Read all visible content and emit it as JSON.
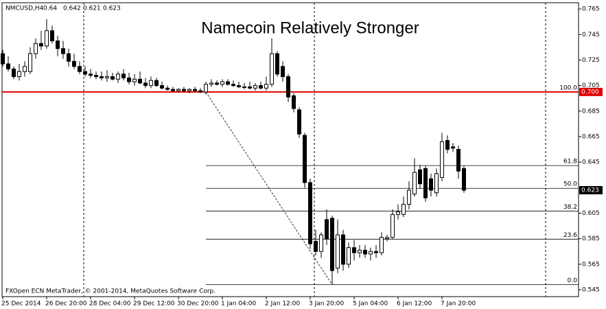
{
  "chart_data": {
    "type": "candlestick",
    "symbol": "NMCUSD,H4",
    "title": "Namecoin Relatively Stronger",
    "footer": "FXOpen ECN MetaTrader, © 2001-2014, MetaQuotes Software Corp.",
    "categories": [
      "25 Dec 2014",
      null,
      null,
      null,
      null,
      null,
      null,
      null,
      "26 Dec 20:00",
      null,
      null,
      null,
      null,
      null,
      null,
      null,
      "28 Dec 04:00",
      null,
      null,
      null,
      null,
      null,
      null,
      null,
      "29 Dec 12:00",
      null,
      null,
      null,
      null,
      null,
      null,
      null,
      "30 Dec 20:00",
      null,
      null,
      null,
      null,
      null,
      null,
      null,
      "1 Jan 04:00",
      null,
      null,
      null,
      null,
      null,
      null,
      null,
      "2 Jan 12:00",
      null,
      null,
      null,
      null,
      null,
      null,
      null,
      "3 Jan 20:00",
      null,
      null,
      null,
      null,
      null,
      null,
      null,
      "5 Jan 04:00",
      null,
      null,
      null,
      null,
      null,
      null,
      null,
      "6 Jan 12:00",
      null,
      null,
      null,
      null,
      null,
      null,
      null,
      "7 Jan 20:00",
      null,
      null,
      null,
      null
    ],
    "open": [
      0.73,
      0.722,
      0.718,
      0.712,
      0.716,
      0.716,
      0.73,
      0.738,
      0.736,
      0.748,
      0.74,
      0.734,
      0.73,
      0.724,
      0.72,
      0.716,
      0.714,
      0.713,
      0.712,
      0.711,
      0.712,
      0.71,
      0.714,
      0.711,
      0.708,
      0.71,
      0.707,
      0.705,
      0.709,
      0.705,
      0.703,
      0.702,
      0.701,
      0.702,
      0.701,
      0.702,
      0.701,
      0.7,
      0.706,
      0.707,
      0.706,
      0.708,
      0.706,
      0.705,
      0.704,
      0.704,
      0.703,
      0.705,
      0.703,
      0.706,
      0.73,
      0.72,
      0.712,
      0.697,
      0.686,
      0.666,
      0.629,
      0.583,
      0.575,
      0.6,
      0.601,
      0.562,
      0.588,
      0.565,
      0.578,
      0.574,
      0.576,
      0.573,
      0.575,
      0.574,
      0.585,
      0.586,
      0.604,
      0.604,
      0.612,
      0.62,
      0.639,
      0.64,
      0.632,
      0.621,
      0.633,
      0.662,
      0.657,
      0.655,
      0.64
    ],
    "high": [
      0.733,
      0.728,
      0.72,
      0.722,
      0.724,
      0.735,
      0.742,
      0.748,
      0.757,
      0.752,
      0.744,
      0.74,
      0.734,
      0.73,
      0.724,
      0.72,
      0.718,
      0.716,
      0.716,
      0.717,
      0.715,
      0.716,
      0.718,
      0.715,
      0.714,
      0.716,
      0.711,
      0.712,
      0.711,
      0.708,
      0.705,
      0.704,
      0.703,
      0.704,
      0.703,
      0.704,
      0.703,
      0.708,
      0.71,
      0.709,
      0.71,
      0.71,
      0.709,
      0.708,
      0.707,
      0.708,
      0.707,
      0.708,
      0.712,
      0.742,
      0.732,
      0.724,
      0.714,
      0.699,
      0.688,
      0.668,
      0.632,
      0.592,
      0.59,
      0.608,
      0.603,
      0.6,
      0.592,
      0.582,
      0.584,
      0.58,
      0.58,
      0.578,
      0.58,
      0.59,
      0.588,
      0.608,
      0.612,
      0.618,
      0.63,
      0.648,
      0.643,
      0.642,
      0.636,
      0.64,
      0.668,
      0.666,
      0.66,
      0.658,
      0.642
    ],
    "low": [
      0.72,
      0.716,
      0.71,
      0.709,
      0.712,
      0.714,
      0.726,
      0.733,
      0.734,
      0.738,
      0.728,
      0.726,
      0.72,
      0.718,
      0.714,
      0.712,
      0.711,
      0.71,
      0.709,
      0.708,
      0.709,
      0.707,
      0.709,
      0.706,
      0.705,
      0.706,
      0.703,
      0.703,
      0.704,
      0.702,
      0.701,
      0.7,
      0.7,
      0.7,
      0.699,
      0.7,
      0.699,
      0.698,
      0.704,
      0.705,
      0.704,
      0.705,
      0.704,
      0.703,
      0.702,
      0.702,
      0.701,
      0.702,
      0.701,
      0.704,
      0.712,
      0.708,
      0.692,
      0.684,
      0.664,
      0.625,
      0.577,
      0.572,
      0.57,
      0.58,
      0.549,
      0.558,
      0.56,
      0.562,
      0.568,
      0.57,
      0.57,
      0.568,
      0.57,
      0.572,
      0.583,
      0.585,
      0.6,
      0.602,
      0.608,
      0.618,
      0.624,
      0.614,
      0.618,
      0.618,
      0.63,
      0.652,
      0.653,
      0.632,
      0.621
    ],
    "close": [
      0.722,
      0.718,
      0.712,
      0.716,
      0.72,
      0.73,
      0.738,
      0.736,
      0.748,
      0.74,
      0.734,
      0.73,
      0.724,
      0.72,
      0.716,
      0.714,
      0.713,
      0.712,
      0.711,
      0.712,
      0.71,
      0.714,
      0.711,
      0.708,
      0.71,
      0.707,
      0.705,
      0.709,
      0.705,
      0.703,
      0.702,
      0.701,
      0.702,
      0.701,
      0.702,
      0.701,
      0.7,
      0.706,
      0.707,
      0.706,
      0.708,
      0.706,
      0.705,
      0.704,
      0.704,
      0.703,
      0.705,
      0.703,
      0.706,
      0.73,
      0.714,
      0.712,
      0.696,
      0.687,
      0.667,
      0.629,
      0.581,
      0.575,
      0.588,
      0.585,
      0.56,
      0.588,
      0.565,
      0.578,
      0.574,
      0.576,
      0.573,
      0.575,
      0.574,
      0.586,
      0.586,
      0.604,
      0.606,
      0.612,
      0.623,
      0.637,
      0.628,
      0.617,
      0.623,
      0.636,
      0.661,
      0.655,
      0.656,
      0.638,
      0.623
    ],
    "up_color": "#ffffff",
    "down_color": "#000000",
    "ylim": [
      0.5396,
      0.7699
    ],
    "yticks": [
      0.545,
      0.565,
      0.585,
      0.605,
      0.645,
      0.665,
      0.685,
      {
        "value": 0.705,
        "label": "0.705"
      },
      0.725,
      0.745,
      0.765
    ],
    "hline": {
      "value": 0.7,
      "label": "0.700",
      "color": "#e00000"
    },
    "fib": {
      "high": 0.7,
      "low": 0.549,
      "levels": [
        {
          "value": 100,
          "label": "100.0"
        },
        61.8,
        {
          "value": 50,
          "label": "50.0"
        },
        38.2,
        23.6,
        {
          "value": 0,
          "label": "0.0"
        }
      ]
    }
  }
}
